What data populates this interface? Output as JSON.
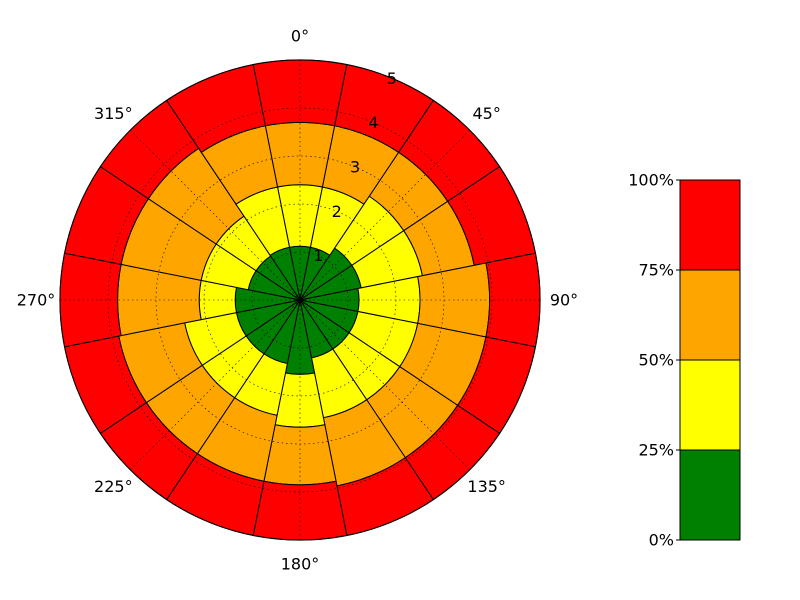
{
  "chart_data": {
    "type": "polar-stacked-bar",
    "angle_ticks": [
      "0°",
      "45°",
      "90°",
      "135°",
      "180°",
      "225°",
      "270°",
      "315°"
    ],
    "angle_tick_values_deg": [
      0,
      45,
      90,
      135,
      180,
      225,
      270,
      315
    ],
    "radial_ticks": [
      "1",
      "2",
      "3",
      "4",
      "5"
    ],
    "radial_tick_values": [
      1,
      2,
      3,
      4,
      5
    ],
    "rlim": [
      0,
      5
    ],
    "theta_zero": "top",
    "theta_direction": "clockwise",
    "sectors_deg": [
      0,
      22.5,
      45,
      67.5,
      90,
      112.5,
      135,
      157.5,
      180,
      202.5,
      225,
      247.5,
      270,
      292.5,
      315,
      337.5
    ],
    "sector_width_deg": 22.5,
    "bands": [
      {
        "color": "#008000",
        "outer": [
          1.12,
          1.12,
          1.3,
          1.3,
          1.23,
          1.23,
          1.23,
          1.23,
          1.55,
          1.35,
          1.35,
          1.35,
          1.35,
          1.1,
          1.1,
          1.12
        ]
      },
      {
        "color": "#ffff00",
        "outer": [
          2.4,
          2.4,
          2.6,
          2.6,
          2.5,
          2.5,
          2.5,
          2.5,
          2.65,
          2.45,
          2.45,
          2.45,
          2.1,
          2.1,
          2.1,
          2.4
        ]
      },
      {
        "color": "#ffa500",
        "outer": [
          3.7,
          3.7,
          3.7,
          3.7,
          3.95,
          3.95,
          3.95,
          3.95,
          3.85,
          3.85,
          3.85,
          3.85,
          3.8,
          3.8,
          3.8,
          3.7
        ]
      },
      {
        "color": "#ff0000",
        "outer": [
          5.0,
          5.0,
          5.0,
          5.0,
          5.0,
          5.0,
          5.0,
          5.0,
          5.0,
          5.0,
          5.0,
          5.0,
          5.0,
          5.0,
          5.0,
          5.0
        ]
      }
    ],
    "grid": true,
    "colorbar": {
      "labels": [
        "0%",
        "25%",
        "50%",
        "75%",
        "100%"
      ],
      "values": [
        0,
        25,
        50,
        75,
        100
      ],
      "colors": [
        "#008000",
        "#ffff00",
        "#ffa500",
        "#ff0000"
      ]
    }
  }
}
